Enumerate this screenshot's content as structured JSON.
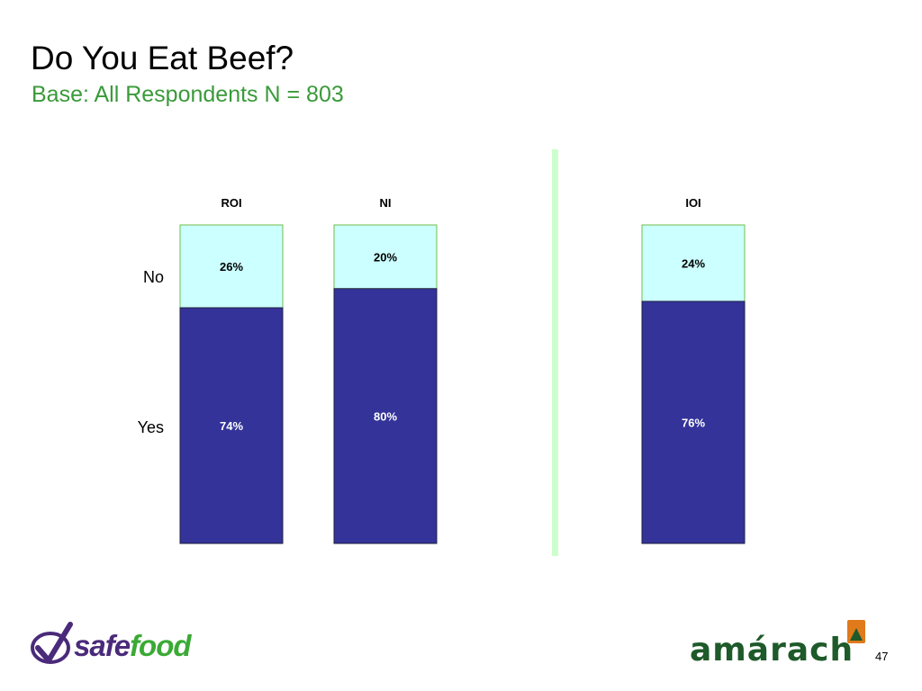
{
  "slide": {
    "title": "Do You Eat Beef?",
    "subtitle": "Base:  All Respondents N = 803",
    "page_number": "47"
  },
  "colors": {
    "subtitle": "#3a9a3a",
    "yes": "#333399",
    "no": "#ccffff",
    "segment_border": "#6fbf4a",
    "divider": "#ccffcc",
    "safefood_purple": "#4a2a7a",
    "safefood_green": "#3aaa35",
    "amarach_green": "#1e5a2a",
    "amarach_orange": "#e07a1a"
  },
  "chart_data": {
    "type": "bar",
    "stacked": true,
    "percent": true,
    "categories": [
      "ROI",
      "NI",
      "IOI"
    ],
    "series": [
      {
        "name": "Yes",
        "values": [
          74,
          80,
          76
        ],
        "labels": [
          "74%",
          "80%",
          "76%"
        ]
      },
      {
        "name": "No",
        "values": [
          26,
          20,
          24
        ],
        "labels": [
          "26%",
          "20%",
          "24%"
        ]
      }
    ],
    "ylim": [
      0,
      100
    ],
    "grid": false,
    "legend": "left"
  },
  "logos": {
    "left": "safefood",
    "left_parts": [
      "safe",
      "food"
    ],
    "right": "amárach"
  }
}
